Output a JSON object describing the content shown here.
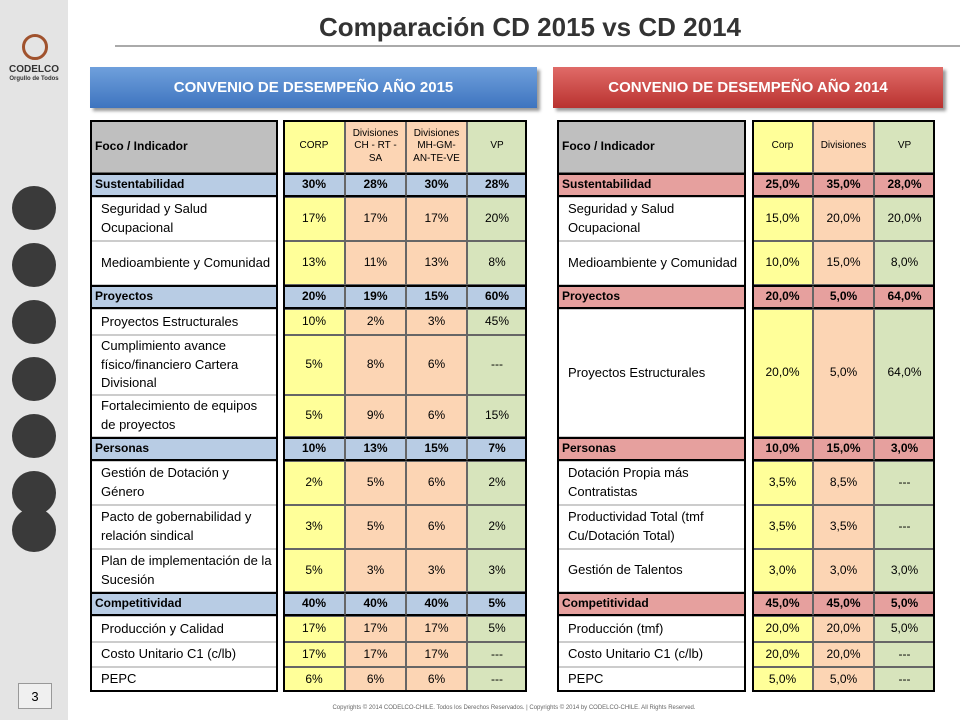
{
  "title": "Comparación CD 2015 vs CD 2014",
  "logo": {
    "name": "CODELCO",
    "tagline": "Orgullo de Todos"
  },
  "page_number": "3",
  "footer": "Copyrights © 2014 CODELCO-CHILE. Todos los Derechos Reservados. | Copyrights © 2014 by CODELCO-CHILE. All Rights Reserved.",
  "tables": [
    {
      "banner": "CONVENIO DE DESEMPEÑO AÑO 2015",
      "headers": [
        "Foco / Indicador",
        "CORP",
        "Divisiones CH - RT - SA",
        "Divisiones MH-GM-AN-TE-VE",
        "VP"
      ],
      "sections": [
        {
          "label": "Sustentabilidad",
          "values": [
            "30%",
            "28%",
            "30%",
            "28%"
          ],
          "items": [
            {
              "label": "Seguridad y Salud Ocupacional",
              "values": [
                "17%",
                "17%",
                "17%",
                "20%"
              ]
            },
            {
              "label": "Medioambiente y Comunidad",
              "values": [
                "13%",
                "11%",
                "13%",
                "8%"
              ]
            }
          ]
        },
        {
          "label": "Proyectos",
          "values": [
            "20%",
            "19%",
            "15%",
            "60%"
          ],
          "items": [
            {
              "label": "Proyectos Estructurales",
              "values": [
                "10%",
                "2%",
                "3%",
                "45%"
              ]
            },
            {
              "label": "Cumplimiento avance físico/financiero Cartera Divisional",
              "values": [
                "5%",
                "8%",
                "6%",
                "---"
              ]
            },
            {
              "label": "Fortalecimiento de equipos de proyectos",
              "values": [
                "5%",
                "9%",
                "6%",
                "15%"
              ]
            }
          ]
        },
        {
          "label": "Personas",
          "values": [
            "10%",
            "13%",
            "15%",
            "7%"
          ],
          "items": [
            {
              "label": "Gestión de Dotación y Género",
              "values": [
                "2%",
                "5%",
                "6%",
                "2%"
              ]
            },
            {
              "label": "Pacto de gobernabilidad y relación sindical",
              "values": [
                "3%",
                "5%",
                "6%",
                "2%"
              ]
            },
            {
              "label": "Plan de implementación de la Sucesión",
              "values": [
                "5%",
                "3%",
                "3%",
                "3%"
              ]
            }
          ]
        },
        {
          "label": "Competitividad",
          "values": [
            "40%",
            "40%",
            "40%",
            "5%"
          ],
          "items": [
            {
              "label": "Producción y Calidad",
              "values": [
                "17%",
                "17%",
                "17%",
                "5%"
              ]
            },
            {
              "label": "Costo Unitario C1 (c/lb)",
              "values": [
                "17%",
                "17%",
                "17%",
                "---"
              ]
            },
            {
              "label": "PEPC",
              "values": [
                "6%",
                "6%",
                "6%",
                "---"
              ]
            }
          ]
        }
      ]
    },
    {
      "banner": "CONVENIO DE DESEMPEÑO AÑO 2014",
      "headers": [
        "Foco / Indicador",
        "Corp",
        "Divisiones",
        "VP"
      ],
      "sections": [
        {
          "label": "Sustentabilidad",
          "values": [
            "25,0%",
            "35,0%",
            "28,0%"
          ],
          "items": [
            {
              "label": "Seguridad y Salud Ocupacional",
              "values": [
                "15,0%",
                "20,0%",
                "20,0%"
              ]
            },
            {
              "label": "Medioambiente y Comunidad",
              "values": [
                "10,0%",
                "15,0%",
                "8,0%"
              ]
            }
          ]
        },
        {
          "label": "Proyectos",
          "values": [
            "20,0%",
            "5,0%",
            "64,0%"
          ],
          "items": [
            {
              "label": "Proyectos Estructurales",
              "values": [
                "20,0%",
                "5,0%",
                "64,0%"
              ]
            }
          ]
        },
        {
          "label": "Personas",
          "values": [
            "10,0%",
            "15,0%",
            "3,0%"
          ],
          "items": [
            {
              "label": "Dotación Propia más Contratistas",
              "values": [
                "3,5%",
                "8,5%",
                "---"
              ]
            },
            {
              "label": "Productividad Total (tmf Cu/Dotación Total)",
              "values": [
                "3,5%",
                "3,5%",
                "---"
              ]
            },
            {
              "label": "Gestión de Talentos",
              "values": [
                "3,0%",
                "3,0%",
                "3,0%"
              ]
            }
          ]
        },
        {
          "label": "Competitividad",
          "values": [
            "45,0%",
            "45,0%",
            "5,0%"
          ],
          "items": [
            {
              "label": "Producción (tmf)",
              "values": [
                "20,0%",
                "20,0%",
                "5,0%"
              ]
            },
            {
              "label": "Costo Unitario C1 (c/lb)",
              "values": [
                "20,0%",
                "20,0%",
                "---"
              ]
            },
            {
              "label": "PEPC",
              "values": [
                "5,0%",
                "5,0%",
                "---"
              ]
            }
          ]
        }
      ]
    }
  ]
}
